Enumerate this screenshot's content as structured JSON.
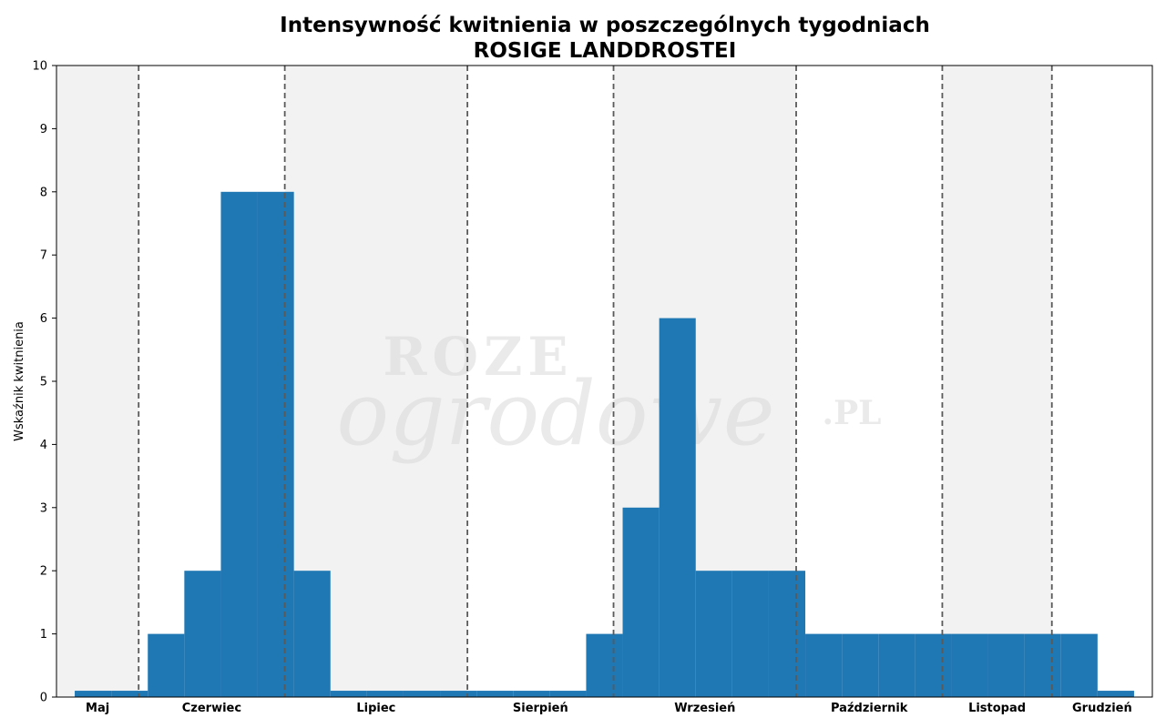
{
  "colors": {
    "bar": "#1f77b4",
    "band": "#f2f2f2",
    "month_line": "#5a5a5a",
    "axes": "#000000",
    "background": "#ffffff"
  },
  "chart_data": {
    "type": "bar",
    "title": "Intensywność kwitnienia w poszczególnych tygodniach",
    "subtitle": "ROSIGE LANDDROSTEI",
    "xlabel": "",
    "ylabel": "Wskaźnik kwitnienia",
    "ylim": [
      0,
      10
    ],
    "yticks": [
      0,
      1,
      2,
      3,
      4,
      5,
      6,
      7,
      8,
      9,
      10
    ],
    "grid": false,
    "legend": "none",
    "week_range": [
      18,
      48
    ],
    "x_unit": "week",
    "series": [
      {
        "weeks": [
          19,
          20,
          21,
          22,
          23,
          24,
          25,
          26,
          27,
          28,
          29,
          30,
          31,
          32,
          33,
          34,
          35,
          36,
          37,
          38,
          39,
          40,
          41,
          42,
          43,
          44,
          45,
          46,
          47
        ],
        "values": [
          0.1,
          0.1,
          1,
          2,
          8,
          8,
          2,
          0.1,
          0.1,
          0.1,
          0.1,
          0.1,
          0.1,
          0.1,
          1,
          3,
          6,
          2,
          2,
          2,
          1,
          1,
          1,
          1,
          1,
          1,
          1,
          1,
          0.1
        ]
      }
    ],
    "months": [
      {
        "label": "Maj",
        "start_week": 18,
        "end_week": 20.25,
        "shaded": true
      },
      {
        "label": "Czerwiec",
        "start_week": 20.25,
        "end_week": 24.25,
        "shaded": false
      },
      {
        "label": "Lipiec",
        "start_week": 24.25,
        "end_week": 29.25,
        "shaded": true
      },
      {
        "label": "Sierpień",
        "start_week": 29.25,
        "end_week": 33.25,
        "shaded": false
      },
      {
        "label": "Wrzesień",
        "start_week": 33.25,
        "end_week": 38.25,
        "shaded": true
      },
      {
        "label": "Październik",
        "start_week": 38.25,
        "end_week": 42.25,
        "shaded": false
      },
      {
        "label": "Listopad",
        "start_week": 42.25,
        "end_week": 45.25,
        "shaded": true
      },
      {
        "label": "Grudzień",
        "start_week": 45.25,
        "end_week": 48,
        "shaded": false
      }
    ]
  },
  "watermark": {
    "line1": "ROZE",
    "line2": "ogrodowe",
    "suffix": ".PL"
  }
}
